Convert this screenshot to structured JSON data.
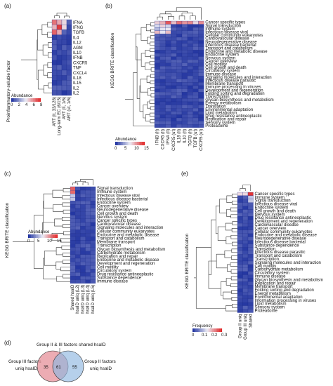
{
  "panels": {
    "a": {
      "label": "(a)",
      "ylabel": "Proinflammatory-soluble factor",
      "rows": [
        "IFNA",
        "IFNG",
        "TGFB",
        "IL4",
        "IL12",
        "AGM",
        "IL10",
        "IFNB",
        "CXCR5",
        "TNF",
        "CXCL4",
        "IL18",
        "IL15",
        "IL2",
        "IL2"
      ],
      "cols": [
        "ART (lt, 33/128)",
        "Long-term EC (6/15)",
        "ART (lt, 1/6)",
        "ART (ut, 1/6)"
      ],
      "legend_title": "Abundance",
      "legend_ticks": [
        "0",
        "2",
        "4",
        "6",
        "8"
      ]
    },
    "b": {
      "label": "(b)",
      "ylabel": "KEGG BRITE classification",
      "rows": [
        "Cancer specific types",
        "Signal transduction",
        "Immune system",
        "Infectious disease viral",
        "Cellular community eukaryotes",
        "Cardiovascular disease",
        "Neurodegenerative disease",
        "Infectious disease bacterial",
        "Transport and catabolism",
        "Endocrine and metabolic disease",
        "Endocrine system",
        "Nervous system",
        "Cancer overview",
        "Cell motility",
        "Cell growth and death",
        "Circulatory system",
        "Immune disease",
        "Signaling molecules and interaction",
        "Infectious disease parasitic",
        "Membrane transport",
        "Immune processing in viruses",
        "Development and regeneration",
        "Folding sorting and degradation",
        "Transcription",
        "Glycan biosynthesis and metabolism",
        "Energy metabolism",
        "Translation",
        "Environmental adaptation",
        "Lipid metabolism",
        "Drug resistance antineoplastic",
        "Replication and repair",
        "Sensory system",
        "Proteasome"
      ],
      "cols": [
        "IFNB (lt)",
        "CXCR5 (lt)",
        "IFNA (lt)",
        "CXCR5 (ut)",
        "IL18 (lt)",
        "IL10 (lt)",
        "TGFB (lt)",
        "TGFB (ut)",
        "CXCR5 (ut)"
      ],
      "legend_title": "Abundance",
      "legend_ticks": [
        "0",
        "5",
        "10",
        "15"
      ]
    },
    "c": {
      "label": "(c)",
      "ylabel": "KEGG BRITE classification",
      "rows": [
        "Signal transduction",
        "Immune system",
        "Infectious disease viral",
        "Infectious disease bacterial",
        "Endocrine system",
        "Cancer overview",
        "Neurodegenerative disease",
        "Cell growth and death",
        "Nervous system",
        "Cancer specific types",
        "Cardiovascular disease",
        "Signaling molecules and interaction",
        "Cellular community eukaryotes",
        "Endocrine and metabolic disease",
        "Transport and catabolism",
        "Membrane transport",
        "Transcription",
        "Glycan biosynthesis and metabolism",
        "Carbohydrate metabolism",
        "Replication and repair",
        "Endocrine and metabolic disease",
        "Development and regeneration",
        "Cell motility",
        "Circulatory system",
        "Drug resistance antineoplastic",
        "Substance dependence",
        "Immune disease"
      ],
      "cols": [
        "Shared hsaID",
        "hsaID uniq (L2)",
        "hsaID uniq (L3)",
        "hsaID uniq (L4)",
        "hsaID uniq (L5)"
      ],
      "legend_title": "Abundance",
      "legend_ticks": [
        "0",
        "5",
        "10",
        "15"
      ]
    },
    "e": {
      "label": "(e)",
      "ylabel": "KEGG BRITE classification",
      "rows": [
        "Cancer specific types",
        "Immune system",
        "Signal transduction",
        "Infectious disease viral",
        "Endocrine system",
        "Cell growth and death",
        "Nervous system",
        "Drug resistance antineoplastic",
        "Development and regeneration",
        "Cardiovascular disease",
        "Cancer overview",
        "Cellular community eukaryotes",
        "Endocrine and metabolic disease",
        "Neurodegenerative disease",
        "Infectious disease bacterial",
        "Substance dependence",
        "Translation",
        "Infectious disease parasitic",
        "Transport and catabolism",
        "Transcription",
        "Signaling molecules and interaction",
        "Cell motility",
        "Carbohydrate metabolism",
        "Circulatory system",
        "Immune disease",
        "Glycan biosynthesis and metabolism",
        "Replication and repair",
        "Membrane transport",
        "Folding sorting and degradation",
        "Energy metabolism",
        "Environmental adaptation",
        "Information processing in viruses",
        "Lipid metabolism",
        "Sensory system",
        "Proteasome"
      ],
      "cols": [
        "Group II uniq",
        "Group III uniq",
        "Shared"
      ],
      "legend_title": "Frequency",
      "legend_ticks": [
        "0",
        "0.1",
        "0.2",
        "0.3"
      ]
    },
    "d": {
      "label": "(d)",
      "top_label": "Group II & III factors shared hsaID",
      "left_label_1": "Group III factors",
      "left_label_2": "uniq hsaID",
      "right_label_1": "Group II factors",
      "right_label_2": "uniq hsaID",
      "left_count": "35",
      "shared_count": "61",
      "right_count": "55"
    }
  },
  "colors": {
    "low": "#1c2f9e",
    "mid": "#f0f0f5",
    "high": "#e02020"
  }
}
